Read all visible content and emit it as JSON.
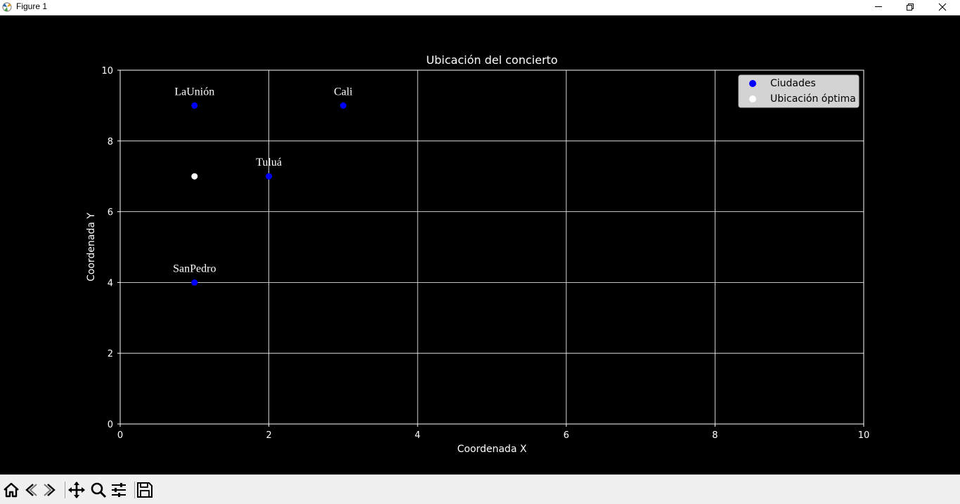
{
  "window": {
    "title": "Figure 1",
    "icon": "matplotlib-icon",
    "controls": [
      "minimize-icon",
      "restore-icon",
      "close-icon"
    ]
  },
  "chart_data": {
    "type": "scatter",
    "title": "Ubicación del concierto",
    "xlabel": "Coordenada X",
    "ylabel": "Coordenada Y",
    "xlim": [
      0,
      10
    ],
    "ylim": [
      0,
      10
    ],
    "xticks": [
      "0",
      "2",
      "4",
      "6",
      "8",
      "10"
    ],
    "yticks": [
      "0",
      "2",
      "4",
      "6",
      "8",
      "10"
    ],
    "grid": true,
    "background": "#000000",
    "legend_position": "top-right",
    "series": [
      {
        "name": "Ciudades",
        "color": "#0000ff",
        "points": [
          {
            "x": 1,
            "y": 9,
            "label": "LaUnión"
          },
          {
            "x": 3,
            "y": 9,
            "label": "Cali"
          },
          {
            "x": 2,
            "y": 7,
            "label": "Tuluá"
          },
          {
            "x": 1,
            "y": 4,
            "label": "SanPedro"
          }
        ]
      },
      {
        "name": "Ubicación óptima",
        "color": "#ffffff",
        "points": [
          {
            "x": 1,
            "y": 7
          }
        ]
      }
    ]
  },
  "toolbar": {
    "buttons": [
      "home-icon",
      "back-icon",
      "forward-icon",
      "pan-icon",
      "zoom-icon",
      "configure-subplots-icon",
      "save-icon"
    ]
  }
}
